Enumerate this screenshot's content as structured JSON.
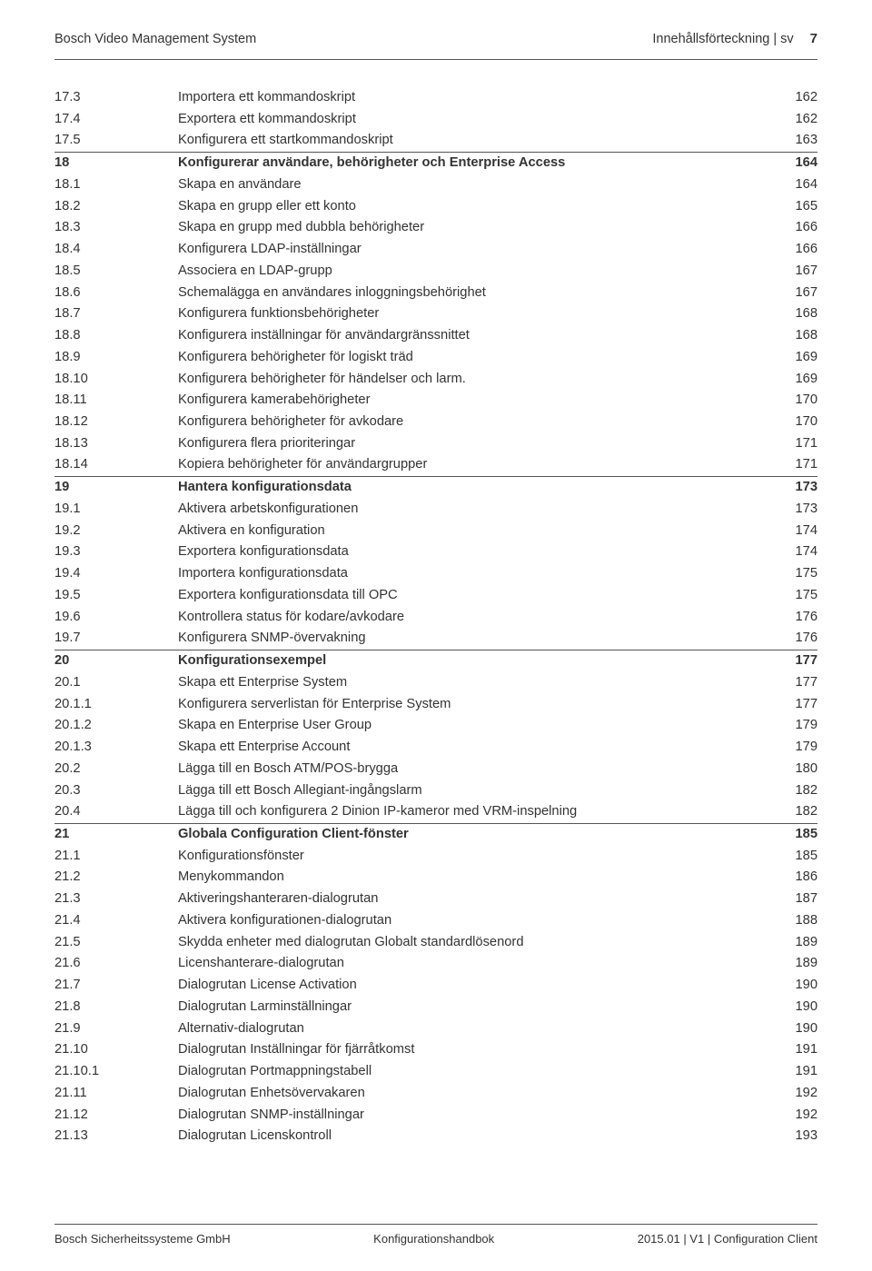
{
  "header": {
    "left": "Bosch Video Management System",
    "right_label": "Innehållsförteckning | sv",
    "page_number": "7"
  },
  "toc": [
    {
      "num": "17.3",
      "title": "Importera ett kommandoskript",
      "page": "162"
    },
    {
      "num": "17.4",
      "title": "Exportera ett kommandoskript",
      "page": "162"
    },
    {
      "num": "17.5",
      "title": "Konfigurera ett startkommandoskript",
      "page": "163"
    },
    {
      "num": "18",
      "title": "Konfigurerar användare, behörigheter och Enterprise Access",
      "page": "164",
      "bold": true,
      "rule": true
    },
    {
      "num": "18.1",
      "title": "Skapa en användare",
      "page": "164"
    },
    {
      "num": "18.2",
      "title": "Skapa en grupp eller ett konto",
      "page": "165"
    },
    {
      "num": "18.3",
      "title": "Skapa en grupp med dubbla behörigheter",
      "page": "166"
    },
    {
      "num": "18.4",
      "title": "Konfigurera LDAP-inställningar",
      "page": "166"
    },
    {
      "num": "18.5",
      "title": "Associera en LDAP-grupp",
      "page": "167"
    },
    {
      "num": "18.6",
      "title": "Schemalägga en användares inloggningsbehörighet",
      "page": "167"
    },
    {
      "num": "18.7",
      "title": "Konfigurera funktionsbehörigheter",
      "page": "168"
    },
    {
      "num": "18.8",
      "title": "Konfigurera inställningar för användargränssnittet",
      "page": "168"
    },
    {
      "num": "18.9",
      "title": "Konfigurera behörigheter för logiskt träd",
      "page": "169"
    },
    {
      "num": "18.10",
      "title": "Konfigurera behörigheter för händelser och larm.",
      "page": "169"
    },
    {
      "num": "18.11",
      "title": "Konfigurera kamerabehörigheter",
      "page": "170"
    },
    {
      "num": "18.12",
      "title": "Konfigurera behörigheter för avkodare",
      "page": "170"
    },
    {
      "num": "18.13",
      "title": "Konfigurera flera prioriteringar",
      "page": "171"
    },
    {
      "num": "18.14",
      "title": "Kopiera behörigheter för användargrupper",
      "page": "171"
    },
    {
      "num": "19",
      "title": "Hantera konfigurationsdata",
      "page": "173",
      "bold": true,
      "rule": true
    },
    {
      "num": "19.1",
      "title": "Aktivera arbetskonfigurationen",
      "page": "173"
    },
    {
      "num": "19.2",
      "title": "Aktivera en konfiguration",
      "page": "174"
    },
    {
      "num": "19.3",
      "title": "Exportera konfigurationsdata",
      "page": "174"
    },
    {
      "num": "19.4",
      "title": "Importera konfigurationsdata",
      "page": "175"
    },
    {
      "num": "19.5",
      "title": "Exportera konfigurationsdata till OPC",
      "page": "175"
    },
    {
      "num": "19.6",
      "title": "Kontrollera status för kodare/avkodare",
      "page": "176"
    },
    {
      "num": "19.7",
      "title": "Konfigurera SNMP-övervakning",
      "page": "176"
    },
    {
      "num": "20",
      "title": "Konfigurationsexempel",
      "page": "177",
      "bold": true,
      "rule": true
    },
    {
      "num": "20.1",
      "title": "Skapa ett Enterprise System",
      "page": "177"
    },
    {
      "num": "20.1.1",
      "title": "Konfigurera serverlistan för Enterprise System",
      "page": "177"
    },
    {
      "num": "20.1.2",
      "title": "Skapa en Enterprise User Group",
      "page": "179"
    },
    {
      "num": "20.1.3",
      "title": "Skapa ett Enterprise Account",
      "page": "179"
    },
    {
      "num": "20.2",
      "title": "Lägga till en Bosch ATM/POS-brygga",
      "page": "180"
    },
    {
      "num": "20.3",
      "title": "Lägga till ett Bosch Allegiant-ingångslarm",
      "page": "182"
    },
    {
      "num": "20.4",
      "title": "Lägga till och konfigurera 2 Dinion IP-kameror med VRM-inspelning",
      "page": "182"
    },
    {
      "num": "21",
      "title": "Globala Configuration Client-fönster",
      "page": "185",
      "bold": true,
      "rule": true
    },
    {
      "num": "21.1",
      "title": "Konfigurationsfönster",
      "page": "185"
    },
    {
      "num": "21.2",
      "title": "Menykommandon",
      "page": "186"
    },
    {
      "num": "21.3",
      "title": "Aktiveringshanteraren-dialogrutan",
      "page": "187"
    },
    {
      "num": "21.4",
      "title": "Aktivera konfigurationen-dialogrutan",
      "page": "188"
    },
    {
      "num": "21.5",
      "title": "Skydda enheter med dialogrutan Globalt standardlösenord",
      "page": "189"
    },
    {
      "num": "21.6",
      "title": "Licenshanterare-dialogrutan",
      "page": "189"
    },
    {
      "num": "21.7",
      "title": "Dialogrutan License Activation",
      "page": "190"
    },
    {
      "num": "21.8",
      "title": "Dialogrutan Larminställningar",
      "page": "190"
    },
    {
      "num": "21.9",
      "title": "Alternativ-dialogrutan",
      "page": "190"
    },
    {
      "num": "21.10",
      "title": "Dialogrutan Inställningar för fjärråtkomst",
      "page": "191"
    },
    {
      "num": "21.10.1",
      "title": "Dialogrutan Portmappningstabell",
      "page": "191"
    },
    {
      "num": "21.11",
      "title": "Dialogrutan Enhetsövervakaren",
      "page": "192"
    },
    {
      "num": "21.12",
      "title": "Dialogrutan SNMP-inställningar",
      "page": "192"
    },
    {
      "num": "21.13",
      "title": "Dialogrutan Licenskontroll",
      "page": "193"
    }
  ],
  "footer": {
    "left": "Bosch Sicherheitssysteme GmbH",
    "center": "Konfigurationshandbok",
    "right": "2015.01 | V1 | Configuration Client"
  }
}
